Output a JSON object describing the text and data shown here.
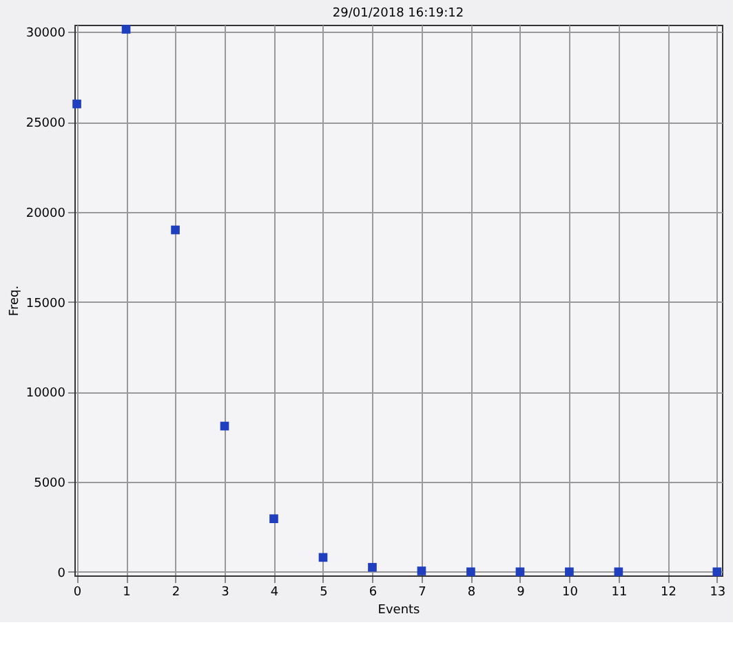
{
  "chart_data": {
    "type": "scatter",
    "title": "29/01/2018 16:19:12",
    "xlabel": "Events",
    "ylabel": "Freq.",
    "x": [
      0,
      1,
      2,
      3,
      4,
      5,
      6,
      7,
      8,
      9,
      10,
      11,
      13
    ],
    "series": [
      {
        "color": "#1f3fbf",
        "values": [
          26000,
          30150,
          19000,
          8100,
          2950,
          800,
          250,
          50,
          0,
          0,
          0,
          0,
          0
        ]
      }
    ],
    "xlim": [
      -0.05,
      13.1
    ],
    "xticks": [
      0,
      1,
      2,
      3,
      4,
      5,
      6,
      7,
      8,
      9,
      10,
      11,
      12,
      13
    ],
    "ylim": [
      -200,
      30400
    ],
    "yticks": [
      0,
      5000,
      10000,
      15000,
      20000,
      25000,
      30000
    ],
    "grid": true,
    "marker": "square"
  }
}
